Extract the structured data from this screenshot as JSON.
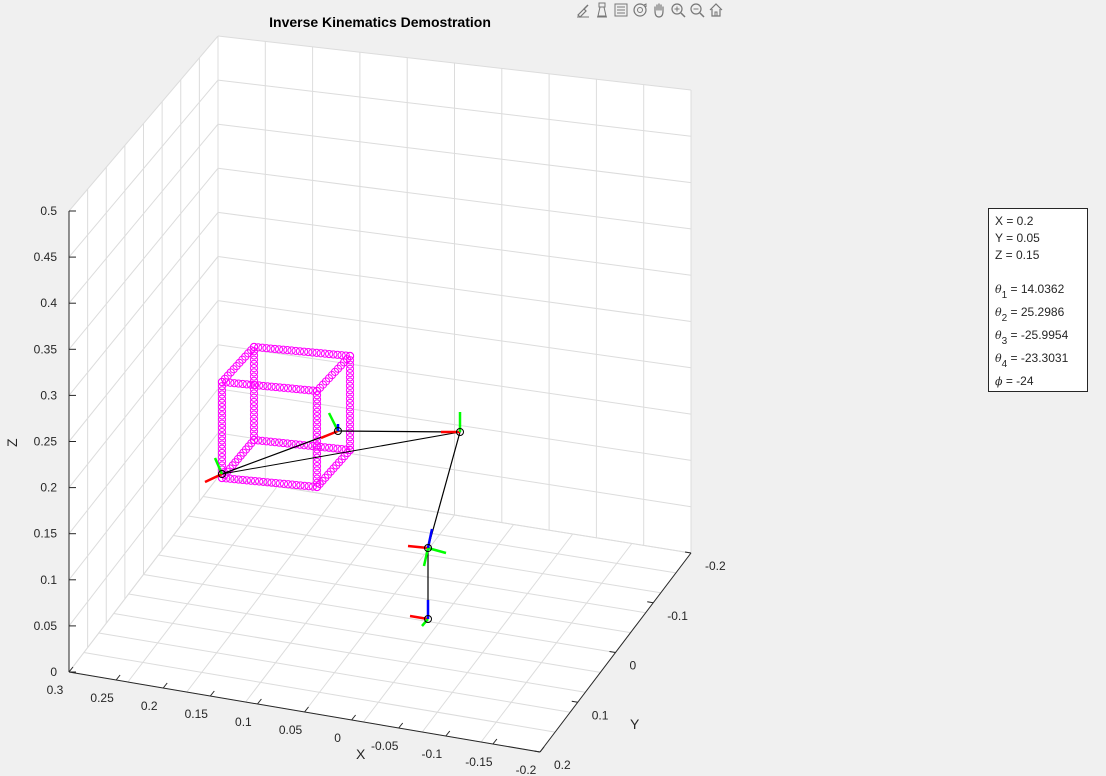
{
  "window": {
    "plot_title": "Inverse Kinematics Demostration"
  },
  "toolbar": {
    "buttons": [
      {
        "name": "brush-icon"
      },
      {
        "name": "data-tips-icon"
      },
      {
        "name": "legend-icon"
      },
      {
        "name": "rotate-3d-icon"
      },
      {
        "name": "pan-hand-icon"
      },
      {
        "name": "zoom-in-icon"
      },
      {
        "name": "zoom-out-icon"
      },
      {
        "name": "home-icon"
      }
    ]
  },
  "axes": {
    "xlabel": "X",
    "ylabel": "Y",
    "zlabel": "Z",
    "x_ticks": [
      "0.3",
      "0.25",
      "0.2",
      "0.15",
      "0.1",
      "0.05",
      "0",
      "-0.05",
      "-0.1",
      "-0.15",
      "-0.2"
    ],
    "y_ticks": [
      "-0.2",
      "-0.1",
      "0",
      "0.1",
      "0.2"
    ],
    "z_ticks": [
      "0",
      "0.05",
      "0.1",
      "0.15",
      "0.2",
      "0.25",
      "0.3",
      "0.35",
      "0.4",
      "0.45",
      "0.5"
    ],
    "grid": true,
    "colors": {
      "background": "#f0f0f0",
      "pane": "#ffffff",
      "grid": "#dcdcdc",
      "axis": "#262626",
      "cube_markers": "#ff00ff",
      "link": "#000000",
      "frame_x": "#ff0000",
      "frame_y": "#00ff00",
      "frame_z": "#0000ff"
    }
  },
  "info_box": {
    "x_line": "X = 0.2",
    "y_line": "Y = 0.05",
    "z_line": "Z = 0.15",
    "theta1_value": " = 14.0362",
    "theta2_value": " = 25.2986",
    "theta3_value": " = -25.9954",
    "theta4_value": " = -23.3031",
    "phi_line": " = -24",
    "theta_symbol": "θ",
    "phi_symbol": "ϕ",
    "sub1": "1",
    "sub2": "2",
    "sub3": "3",
    "sub4": "4"
  }
}
